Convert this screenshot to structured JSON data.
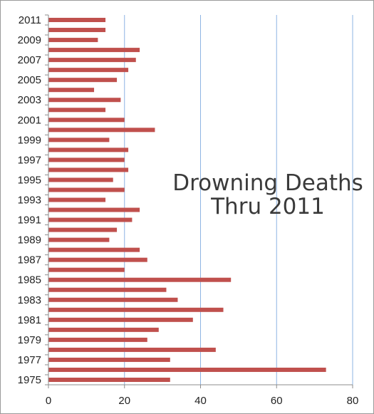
{
  "chart_data": {
    "type": "bar",
    "orientation": "horizontal",
    "title": [
      "Drowning Deaths",
      "Thru 2011"
    ],
    "categories": [
      "1975",
      "1976",
      "1977",
      "1978",
      "1979",
      "1980",
      "1981",
      "1982",
      "1983",
      "1984",
      "1985",
      "1986",
      "1987",
      "1988",
      "1989",
      "1990",
      "1991",
      "1992",
      "1993",
      "1994",
      "1995",
      "1996",
      "1997",
      "1998",
      "1999",
      "2000",
      "2001",
      "2002",
      "2003",
      "2004",
      "2005",
      "2006",
      "2007",
      "2008",
      "2009",
      "2010",
      "2011"
    ],
    "shown_category_labels": [
      "1975",
      "1977",
      "1979",
      "1981",
      "1983",
      "1985",
      "1987",
      "1989",
      "1991",
      "1993",
      "1995",
      "1997",
      "1999",
      "2001",
      "2003",
      "2005",
      "2007",
      "2009",
      "2011"
    ],
    "values": [
      32,
      73,
      32,
      44,
      26,
      29,
      38,
      46,
      34,
      31,
      48,
      20,
      26,
      24,
      16,
      18,
      22,
      24,
      15,
      20,
      17,
      21,
      20,
      21,
      16,
      28,
      20,
      15,
      19,
      12,
      18,
      21,
      23,
      24,
      13,
      15,
      15
    ],
    "xlim": [
      0,
      80
    ],
    "xticks": [
      0,
      20,
      40,
      60,
      80
    ],
    "bar_color": "#c0504d",
    "grid_color": "#8eb4e3",
    "grid": true,
    "legend": "none"
  }
}
